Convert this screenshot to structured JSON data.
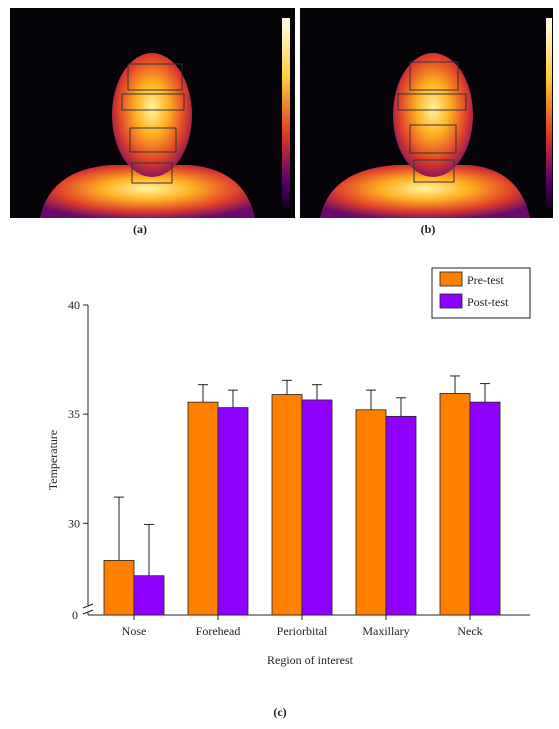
{
  "captions": [
    "(a)",
    "(b)"
  ],
  "chart_data": {
    "type": "bar",
    "caption": "(c)",
    "x_label": "Region of interest",
    "y_label": "Temperature",
    "categories": [
      "Nose",
      "Forehead",
      "Periorbital",
      "Maxillary",
      "Neck"
    ],
    "series": [
      {
        "name": "Pre-test",
        "color": "#ff8000",
        "values": [
          28.3,
          35.55,
          35.9,
          35.2,
          35.95
        ],
        "errors": [
          2.9,
          0.8,
          0.65,
          0.9,
          0.8
        ]
      },
      {
        "name": "Post-test",
        "color": "#8f00ff",
        "values": [
          27.6,
          35.3,
          35.65,
          34.9,
          35.55
        ],
        "errors": [
          2.35,
          0.8,
          0.7,
          0.85,
          0.85
        ]
      }
    ],
    "ylim": [
      25.8,
      40
    ],
    "yticks": [
      30,
      35,
      40
    ],
    "axis_break_label": "0",
    "legend": "top-right"
  }
}
